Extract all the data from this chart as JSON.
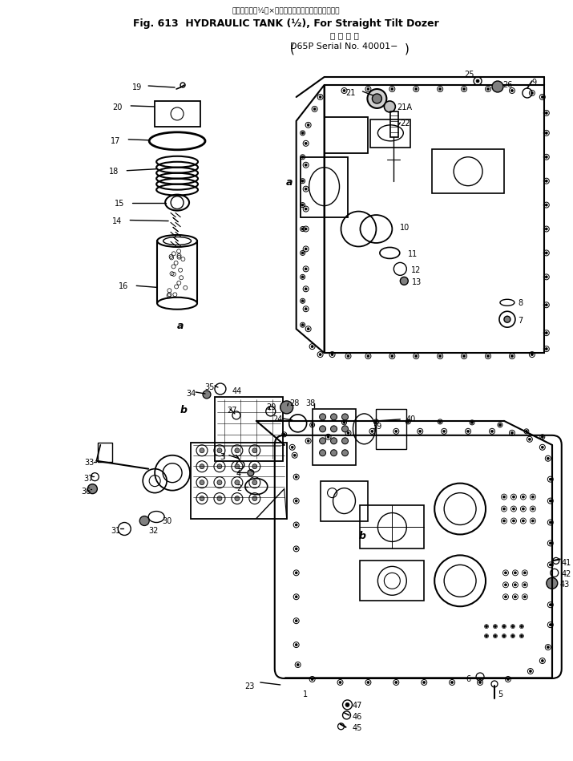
{
  "title_top": "油圧タンク（½）×１　ストレートティルトドーザ用",
  "title_main": "Fig. 613  HYDRAULIC TANK (½), For Straight Tilt Dozer",
  "title_sub1": "適 用 号 機",
  "title_sub2": "D65P Serial No. 40001−",
  "bg": "#ffffff",
  "lc": "#000000",
  "figsize": [
    7.15,
    9.49
  ],
  "dpi": 100
}
